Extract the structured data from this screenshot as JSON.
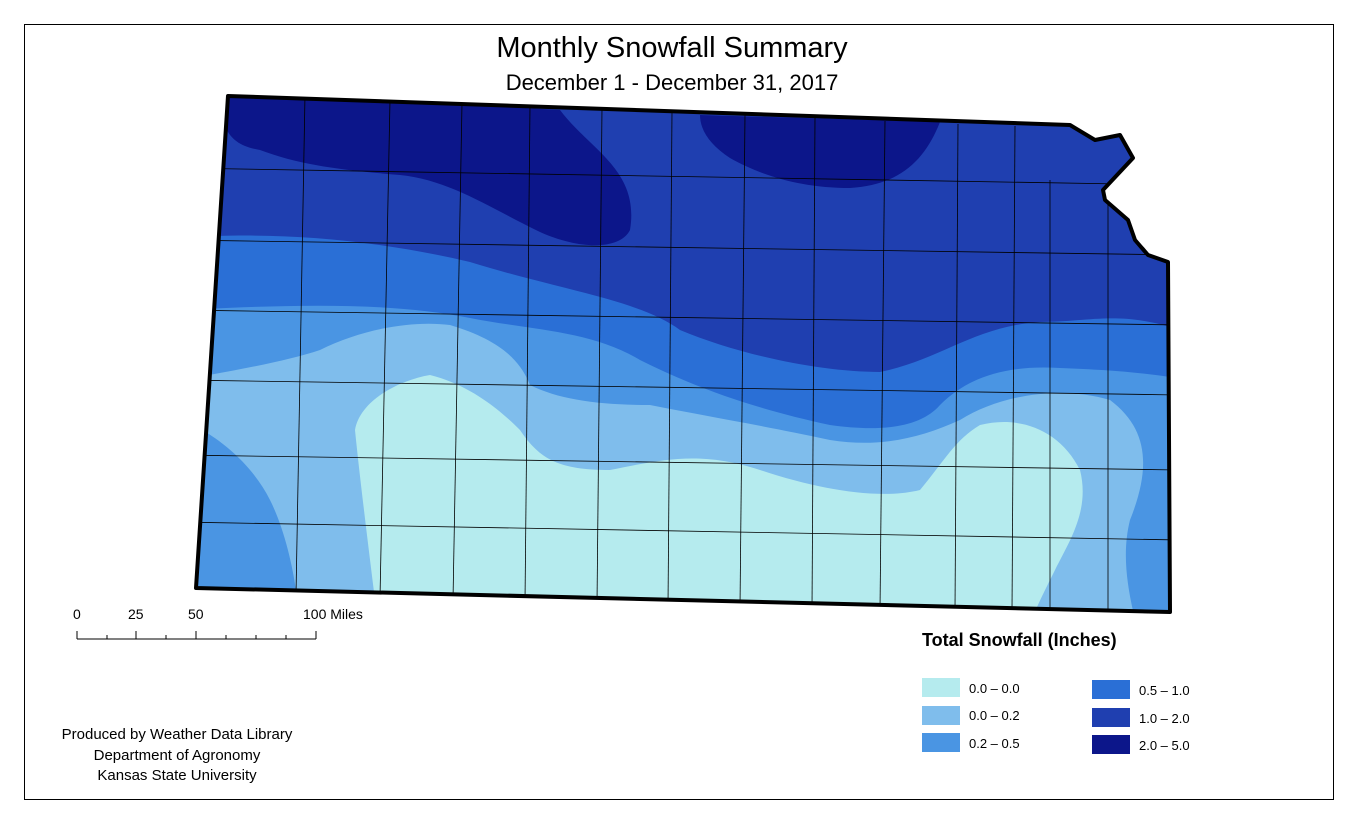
{
  "title": "Monthly Snowfall Summary",
  "subtitle": "December 1 - December 31, 2017",
  "scale_bar": {
    "ticks": [
      "0",
      "25",
      "50",
      "100 Miles"
    ]
  },
  "credits": [
    "Produced by Weather Data Library",
    "Department of Agronomy",
    "Kansas State University"
  ],
  "legend": {
    "title": "Total Snowfall (Inches)",
    "classes": [
      {
        "label": "0.0 – 0.0",
        "color": "#b5ebee"
      },
      {
        "label": "0.0 – 0.2",
        "color": "#7fbdec"
      },
      {
        "label": "0.2 – 0.5",
        "color": "#4a95e3"
      },
      {
        "label": "0.5 – 1.0",
        "color": "#2a6fd6"
      },
      {
        "label": "1.0 – 2.0",
        "color": "#1f3fb0"
      },
      {
        "label": "2.0 – 5.0",
        "color": "#0c168a"
      }
    ]
  }
}
